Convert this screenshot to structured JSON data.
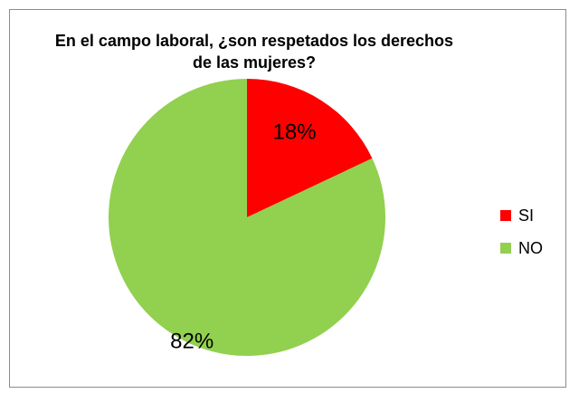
{
  "chart_data": {
    "type": "pie",
    "title_lines": [
      "En el campo laboral, ¿son respetados los derechos",
      "de las mujeres?"
    ],
    "categories": [
      "SI",
      "NO"
    ],
    "values": [
      18,
      82
    ],
    "unit": "%",
    "data_labels": [
      "18%",
      "82%"
    ],
    "colors": [
      "#ff0000",
      "#92d050"
    ],
    "start_angle_deg": 0,
    "direction": "clockwise",
    "legend_position": "right"
  }
}
